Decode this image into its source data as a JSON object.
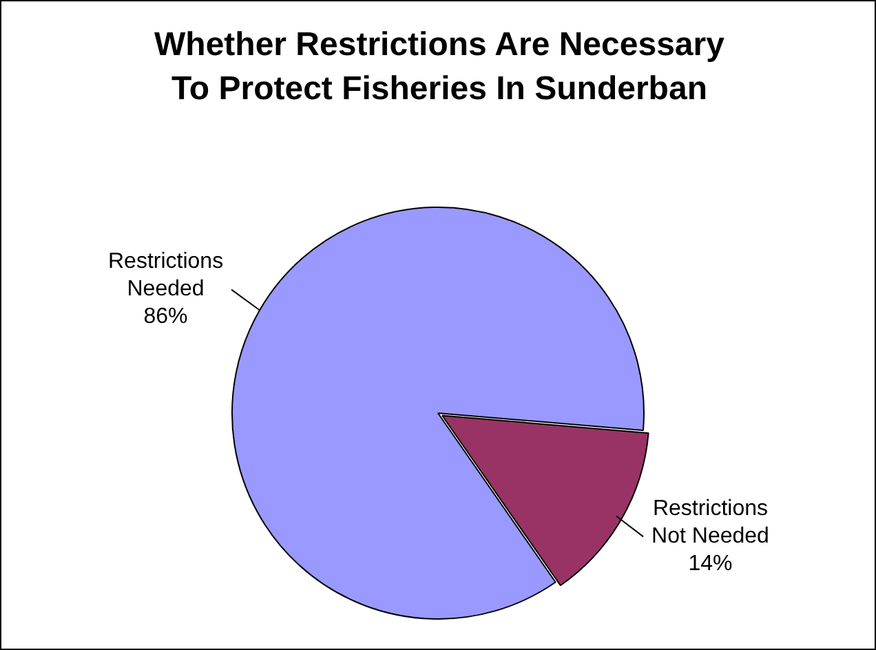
{
  "chart_data": {
    "type": "pie",
    "title": "Whether Restrictions Are Necessary To Protect Fisheries In Sunderban",
    "categories": [
      "Restrictions Needed",
      "Restrictions Not Needed"
    ],
    "values": [
      86,
      14
    ],
    "colors": [
      "#9999ff",
      "#993366"
    ],
    "value_labels": [
      "86%",
      "14%"
    ],
    "legend": false
  }
}
